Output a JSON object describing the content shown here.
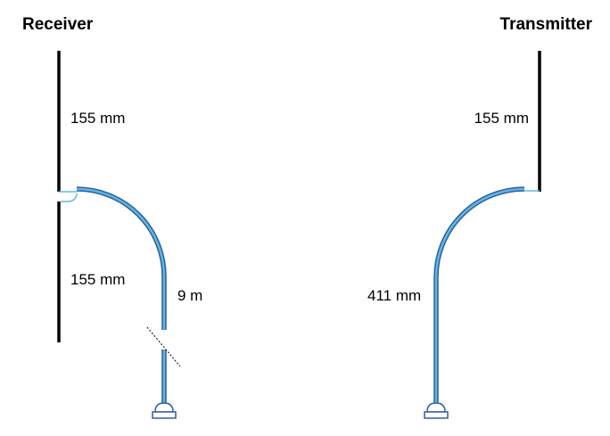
{
  "receiver": {
    "title": "Receiver",
    "upper_element_length": "155 mm",
    "lower_element_length": "155 mm",
    "cable_length": "9 m"
  },
  "transmitter": {
    "title": "Transmitter",
    "element_length": "155 mm",
    "cable_length": "411 mm"
  },
  "colors": {
    "element": "#000000",
    "cable_outer": "#2f5f9f",
    "cable_inner": "#5bb8e6",
    "connector": "#2f5f9f"
  }
}
